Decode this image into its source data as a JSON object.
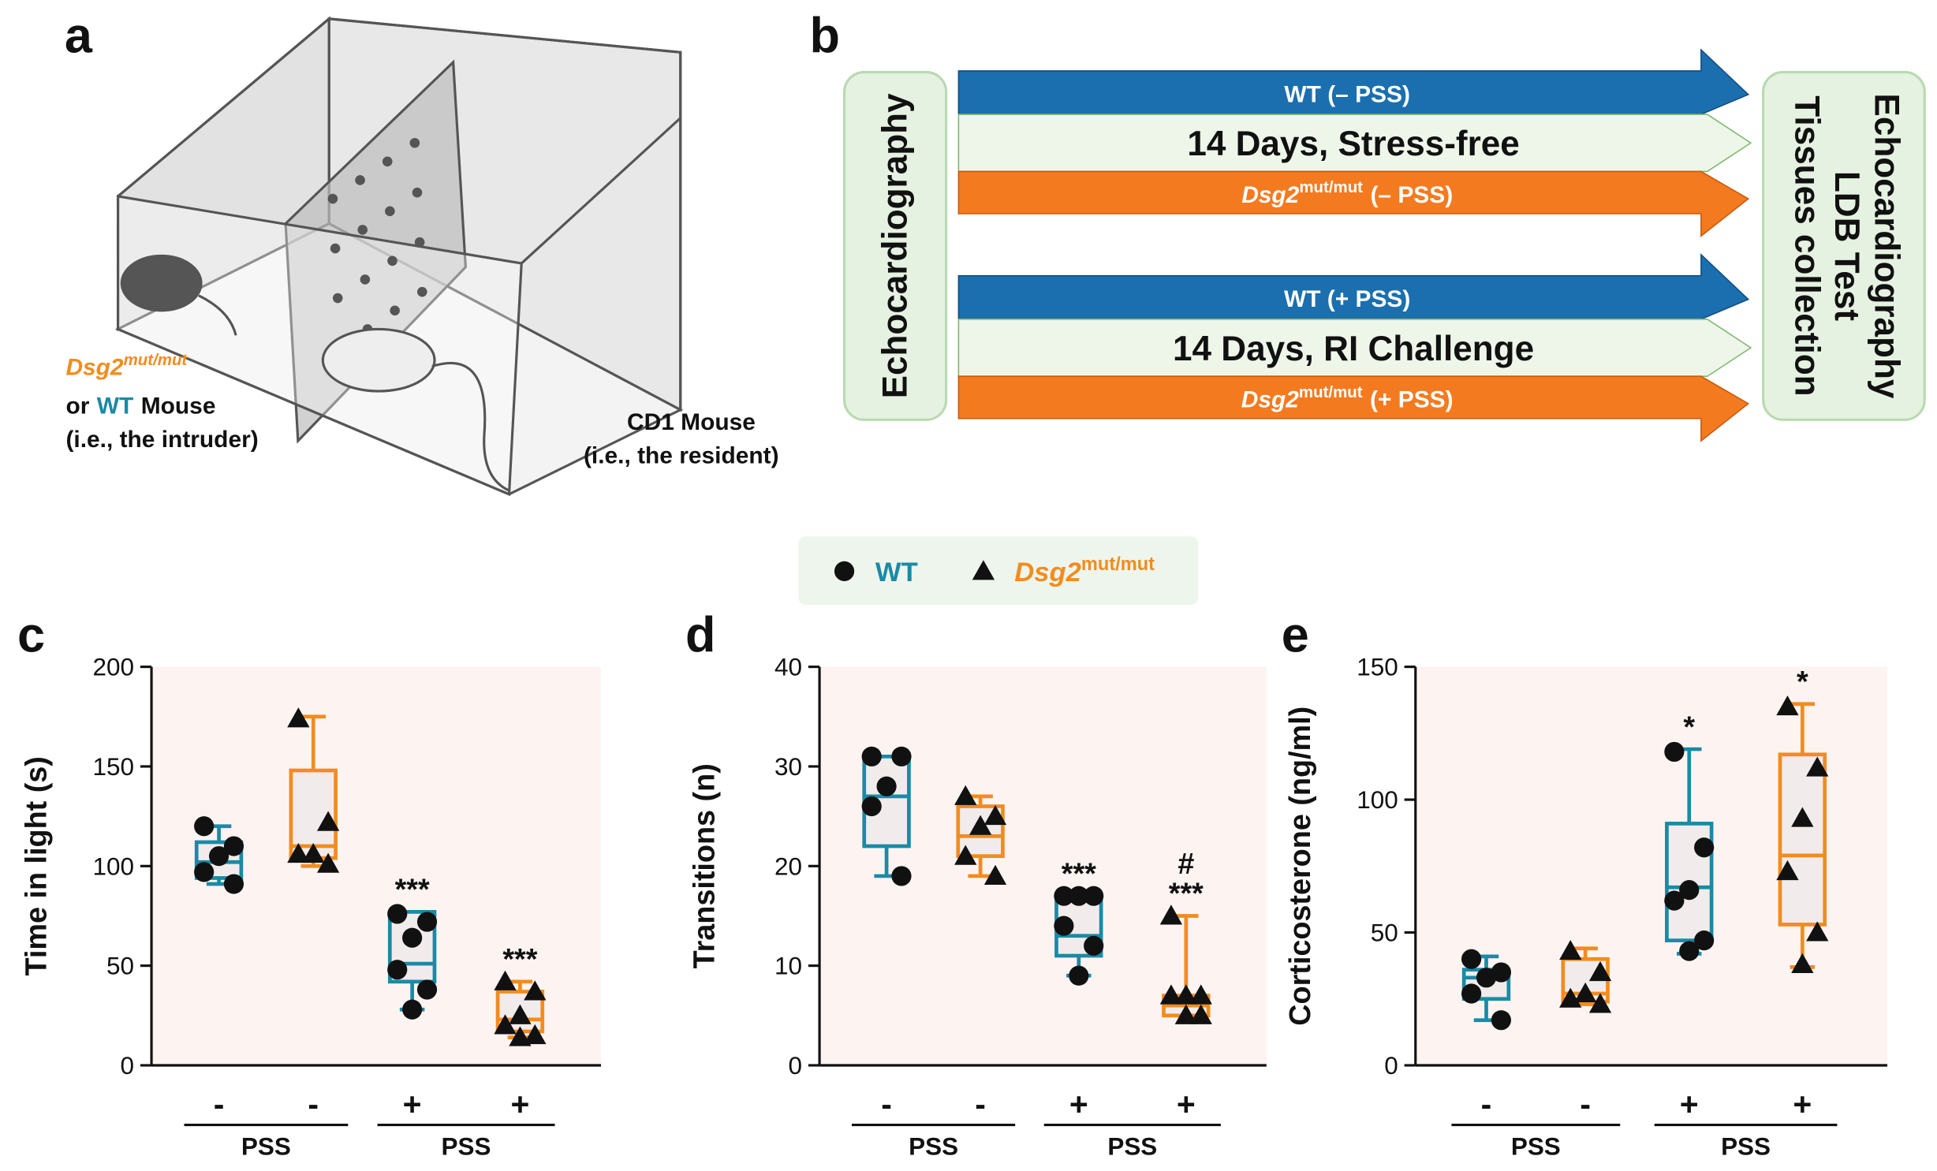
{
  "panel_a": {
    "label": "a",
    "intruder": {
      "strain": "Dsg2",
      "strain_sup": "mut/mut",
      "or": "or",
      "wt": "WT",
      "mouse": "Mouse",
      "role": "(i.e., the intruder)"
    },
    "resident": {
      "name": "CD1 Mouse",
      "role": "(i.e., the resident)"
    }
  },
  "panel_b": {
    "label": "b",
    "start": "Echocardiography",
    "arms": [
      {
        "top": "WT (– PSS)",
        "middle": "14 Days, Stress-free",
        "bottom": {
          "name": "Dsg2",
          "sup": "mut/mut",
          "rest": "(– PSS)"
        }
      },
      {
        "top": "WT (+ PSS)",
        "middle": "14 Days, RI Challenge",
        "bottom": {
          "name": "Dsg2",
          "sup": "mut/mut",
          "rest": "(+ PSS)"
        }
      }
    ],
    "end": [
      "Echocardiography",
      "LDB Test",
      "Tissues collection"
    ]
  },
  "legend": [
    {
      "name": "WT",
      "color": "#1a8aa6",
      "marker": "circle"
    },
    {
      "name": "Dsg2",
      "sup": "mut/mut",
      "color": "#f28c1e",
      "marker": "triangle"
    }
  ],
  "chart_data": [
    {
      "type": "box",
      "label": "c",
      "ylabel": "Time in light (s)",
      "ylim": [
        0,
        200
      ],
      "yticks": [
        0,
        50,
        100,
        150,
        200
      ],
      "categories": [
        "-",
        "-",
        "+",
        "+"
      ],
      "group_labels": [
        "PSS",
        "PSS"
      ],
      "boxes": [
        {
          "color": "#1a8aa6",
          "marker": "circle",
          "min": 91,
          "q1": 94,
          "median": 102,
          "q3": 112,
          "max": 120,
          "points": [
            120,
            110,
            105,
            97,
            91
          ]
        },
        {
          "color": "#f28c1e",
          "marker": "triangle",
          "min": 100,
          "q1": 104,
          "median": 110,
          "q3": 148,
          "max": 175,
          "points": [
            174,
            122,
            106,
            106,
            101
          ]
        },
        {
          "color": "#1a8aa6",
          "marker": "circle",
          "min": 28,
          "q1": 42,
          "median": 51,
          "q3": 77,
          "max": 77,
          "points": [
            76,
            72,
            64,
            48,
            38,
            28
          ],
          "significance": [
            "***"
          ]
        },
        {
          "color": "#f28c1e",
          "marker": "triangle",
          "min": 14,
          "q1": 17,
          "median": 23,
          "q3": 37,
          "max": 42,
          "points": [
            42,
            37,
            25,
            20,
            15,
            14
          ],
          "significance": [
            "***"
          ]
        }
      ]
    },
    {
      "type": "box",
      "label": "d",
      "ylabel": "Transitions (n)",
      "ylim": [
        0,
        40
      ],
      "yticks": [
        0,
        10,
        20,
        30,
        40
      ],
      "categories": [
        "-",
        "-",
        "+",
        "+"
      ],
      "group_labels": [
        "PSS",
        "PSS"
      ],
      "boxes": [
        {
          "color": "#1a8aa6",
          "marker": "circle",
          "min": 19,
          "q1": 22,
          "median": 27,
          "q3": 31,
          "max": 31,
          "points": [
            31,
            31,
            28,
            26,
            19
          ]
        },
        {
          "color": "#f28c1e",
          "marker": "triangle",
          "min": 19,
          "q1": 21,
          "median": 23,
          "q3": 26,
          "max": 27,
          "points": [
            27,
            25,
            24,
            21,
            19
          ]
        },
        {
          "color": "#1a8aa6",
          "marker": "circle",
          "min": 9,
          "q1": 11,
          "median": 13,
          "q3": 17,
          "max": 17,
          "points": [
            17,
            17,
            17,
            14,
            12,
            9
          ],
          "significance": [
            "***"
          ]
        },
        {
          "color": "#f28c1e",
          "marker": "triangle",
          "min": 5,
          "q1": 5,
          "median": 6,
          "q3": 7,
          "max": 15,
          "points": [
            15,
            7,
            7,
            7,
            5,
            5
          ],
          "significance": [
            "#",
            "***"
          ]
        }
      ]
    },
    {
      "type": "box",
      "label": "e",
      "ylabel": "Corticosterone (ng/ml)",
      "ylim": [
        0,
        150
      ],
      "yticks": [
        0,
        50,
        100,
        150
      ],
      "categories": [
        "-",
        "-",
        "+",
        "+"
      ],
      "group_labels": [
        "PSS",
        "PSS"
      ],
      "boxes": [
        {
          "color": "#1a8aa6",
          "marker": "circle",
          "min": 17,
          "q1": 25,
          "median": 33,
          "q3": 36,
          "max": 41,
          "points": [
            40,
            35,
            33,
            27,
            17
          ]
        },
        {
          "color": "#f28c1e",
          "marker": "triangle",
          "min": 23,
          "q1": 24,
          "median": 27,
          "q3": 40,
          "max": 44,
          "points": [
            43,
            35,
            27,
            25,
            23
          ]
        },
        {
          "color": "#1a8aa6",
          "marker": "circle",
          "min": 42,
          "q1": 47,
          "median": 67,
          "q3": 91,
          "max": 119,
          "points": [
            118,
            82,
            66,
            62,
            47,
            43
          ],
          "significance": [
            "*"
          ]
        },
        {
          "color": "#f28c1e",
          "marker": "triangle",
          "min": 37,
          "q1": 53,
          "median": 79,
          "q3": 117,
          "max": 136,
          "points": [
            135,
            112,
            93,
            73,
            50,
            38
          ],
          "significance": [
            "*"
          ]
        }
      ]
    }
  ]
}
